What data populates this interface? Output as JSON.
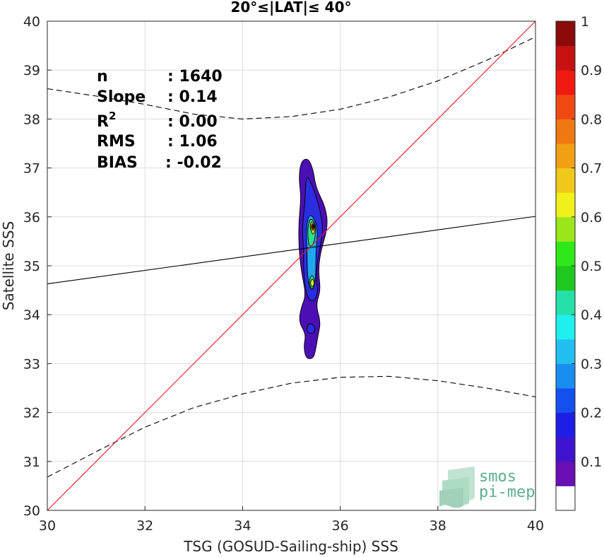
{
  "chart_data": {
    "type": "heatmap",
    "title": "20°≤|LAT|≤ 40°",
    "xlabel": "TSG (GOSUD-Sailing-ship) SSS",
    "ylabel": "Satellite SSS",
    "xlim": [
      30,
      40
    ],
    "ylim": [
      30,
      40
    ],
    "xticks": [
      30,
      32,
      34,
      36,
      38,
      40
    ],
    "yticks": [
      30,
      31,
      32,
      33,
      34,
      35,
      36,
      37,
      38,
      39,
      40
    ],
    "grid": true,
    "stats": [
      {
        "label": "n",
        "value": ": 1640"
      },
      {
        "label": "Slope",
        "value": ": 0.14"
      },
      {
        "label": "R",
        "sup": "2",
        "value": ": 0.00"
      },
      {
        "label": "RMS",
        "value": ": 1.06"
      },
      {
        "label": "BIAS",
        "value": ": -0.02"
      }
    ],
    "identity_line": {
      "x": [
        30,
        40
      ],
      "y": [
        30,
        40
      ],
      "color": "#e8161b"
    },
    "regression_line": {
      "x": [
        30,
        40
      ],
      "y": [
        34.63,
        36.01
      ],
      "color": "#000000"
    },
    "upper_bound": {
      "x": [
        30,
        31,
        32,
        33,
        34,
        35,
        36,
        37,
        38,
        39,
        40
      ],
      "y": [
        38.62,
        38.47,
        38.3,
        38.1,
        38.0,
        38.05,
        38.2,
        38.45,
        38.78,
        39.2,
        39.68
      ]
    },
    "lower_bound": {
      "x": [
        30,
        31,
        32,
        33,
        34,
        35,
        36,
        37,
        38,
        39,
        40
      ],
      "y": [
        30.68,
        31.2,
        31.7,
        32.1,
        32.38,
        32.6,
        32.72,
        32.74,
        32.65,
        32.5,
        32.32
      ]
    },
    "density_contours": [
      {
        "level": 0.05,
        "color": "#4b0fb4",
        "points": [
          [
            35.2,
            37.15
          ],
          [
            35.35,
            37.2
          ],
          [
            35.45,
            36.95
          ],
          [
            35.5,
            36.6
          ],
          [
            35.7,
            36.2
          ],
          [
            35.75,
            35.8
          ],
          [
            35.6,
            35.3
          ],
          [
            35.55,
            34.9
          ],
          [
            35.6,
            34.5
          ],
          [
            35.5,
            34.2
          ],
          [
            35.6,
            33.85
          ],
          [
            35.55,
            33.6
          ],
          [
            35.5,
            33.3
          ],
          [
            35.45,
            33.1
          ],
          [
            35.3,
            33.1
          ],
          [
            35.25,
            33.35
          ],
          [
            35.3,
            33.6
          ],
          [
            35.15,
            33.85
          ],
          [
            35.2,
            34.15
          ],
          [
            35.3,
            34.4
          ],
          [
            35.2,
            34.9
          ],
          [
            35.15,
            35.4
          ],
          [
            35.15,
            35.9
          ],
          [
            35.2,
            36.4
          ],
          [
            35.15,
            36.8
          ]
        ]
      },
      {
        "level": 0.15,
        "color": "#2a2ee0",
        "points": [
          [
            35.3,
            36.9
          ],
          [
            35.45,
            36.6
          ],
          [
            35.6,
            36.1
          ],
          [
            35.65,
            35.7
          ],
          [
            35.55,
            35.2
          ],
          [
            35.5,
            34.8
          ],
          [
            35.55,
            34.45
          ],
          [
            35.45,
            34.25
          ],
          [
            35.32,
            34.35
          ],
          [
            35.25,
            34.8
          ],
          [
            35.25,
            35.3
          ],
          [
            35.22,
            35.8
          ],
          [
            35.28,
            36.3
          ]
        ]
      },
      {
        "level": 0.3,
        "color": "#21a7f0",
        "points": [
          [
            35.38,
            36.1
          ],
          [
            35.55,
            35.8
          ],
          [
            35.5,
            35.3
          ],
          [
            35.5,
            34.7
          ],
          [
            35.42,
            34.45
          ],
          [
            35.33,
            34.7
          ],
          [
            35.32,
            35.3
          ],
          [
            35.3,
            35.8
          ]
        ]
      },
      {
        "level": 0.45,
        "color": "#2de08a",
        "points": [
          [
            35.4,
            36.0
          ],
          [
            35.52,
            35.8
          ],
          [
            35.45,
            35.4
          ],
          [
            35.35,
            35.4
          ],
          [
            35.33,
            35.8
          ]
        ]
      },
      {
        "level": 0.45,
        "color": "#2de08a",
        "points": [
          [
            35.42,
            34.85
          ],
          [
            35.5,
            34.65
          ],
          [
            35.42,
            34.5
          ],
          [
            35.35,
            34.65
          ]
        ]
      },
      {
        "level": 0.6,
        "color": "#d8e81a",
        "points": [
          [
            35.42,
            35.93
          ],
          [
            35.5,
            35.8
          ],
          [
            35.45,
            35.6
          ],
          [
            35.37,
            35.8
          ]
        ]
      },
      {
        "level": 0.6,
        "color": "#d8e81a",
        "points": [
          [
            35.43,
            34.75
          ],
          [
            35.48,
            34.65
          ],
          [
            35.43,
            34.55
          ],
          [
            35.38,
            34.65
          ]
        ]
      },
      {
        "level": 0.85,
        "color": "#e03a10",
        "points": [
          [
            35.43,
            35.88
          ],
          [
            35.48,
            35.8
          ],
          [
            35.44,
            35.7
          ],
          [
            35.4,
            35.8
          ]
        ]
      },
      {
        "level": 0.95,
        "color": "#8b0a0a",
        "points": [
          [
            35.44,
            35.84
          ],
          [
            35.46,
            35.8
          ],
          [
            35.44,
            35.76
          ],
          [
            35.42,
            35.8
          ]
        ]
      },
      {
        "level": 0.15,
        "color": "#2a2ee0",
        "points": [
          [
            35.35,
            33.85
          ],
          [
            35.5,
            33.75
          ],
          [
            35.45,
            33.6
          ],
          [
            35.3,
            33.65
          ]
        ]
      }
    ],
    "colorbar": {
      "range": [
        0,
        1
      ],
      "ticks": [
        "0.1",
        "0.2",
        "0.3",
        "0.4",
        "0.5",
        "0.6",
        "0.7",
        "0.8",
        "0.9",
        "1"
      ],
      "colors": [
        "#ffffff",
        "#6a0fb4",
        "#3f14d0",
        "#1e1ee6",
        "#1450f0",
        "#1a8ef0",
        "#21bff0",
        "#1ef0f0",
        "#25e0a8",
        "#1ec81e",
        "#2ee81a",
        "#9ae61a",
        "#f0f01a",
        "#f0c81a",
        "#f0a012",
        "#f07812",
        "#f04a12",
        "#f01a12",
        "#c81212",
        "#8b0a0a"
      ]
    }
  },
  "logo": {
    "line1": "smos",
    "line2": "pi-mep"
  }
}
